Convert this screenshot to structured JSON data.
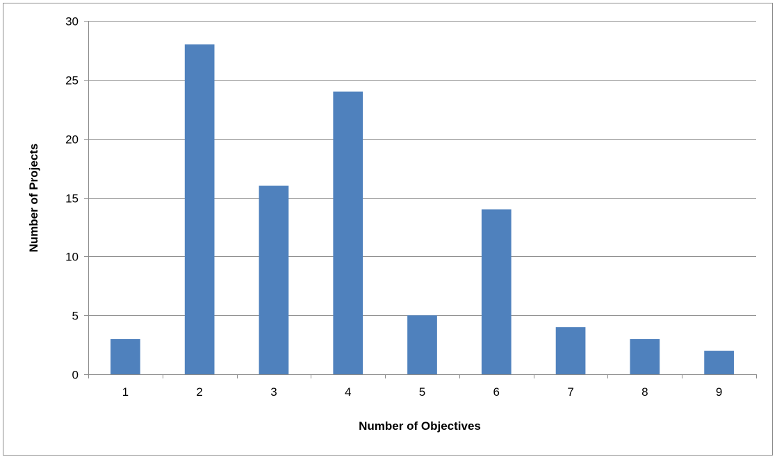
{
  "chart_data": {
    "type": "bar",
    "categories": [
      "1",
      "2",
      "3",
      "4",
      "5",
      "6",
      "7",
      "8",
      "9"
    ],
    "values": [
      3,
      28,
      16,
      24,
      5,
      14,
      4,
      3,
      2
    ],
    "title": "",
    "xlabel": "Number of Objectives",
    "ylabel": "Number of Projects",
    "ylim": [
      0,
      30
    ],
    "yticks": [
      0,
      5,
      10,
      15,
      20,
      25,
      30
    ],
    "grid": true,
    "legend": "none",
    "bar_color": "#4f81bd",
    "grid_color": "#8c8c8c"
  }
}
